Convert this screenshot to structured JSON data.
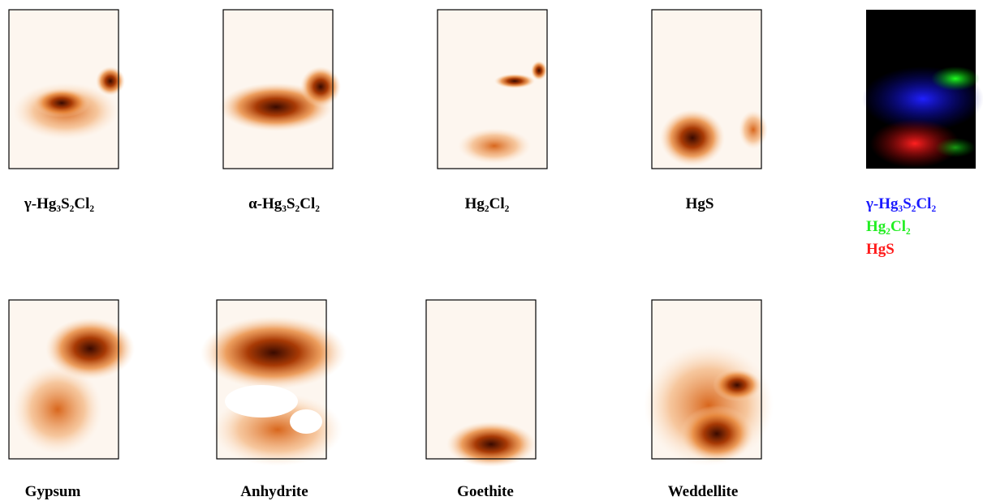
{
  "panels": [
    {
      "label": "γ-Hg₃S₂Cl₂"
    },
    {
      "label": "α-Hg₃S₂Cl₂"
    },
    {
      "label": "Hg₂Cl₂"
    },
    {
      "label": "HgS"
    },
    {
      "labels": [
        "γ-Hg₃S₂Cl₂",
        "Hg₂Cl₂",
        "HgS"
      ]
    },
    {
      "label": "Gypsum"
    },
    {
      "label": "Anhydrite"
    },
    {
      "label": "Goethite"
    },
    {
      "label": "Weddellite"
    }
  ]
}
